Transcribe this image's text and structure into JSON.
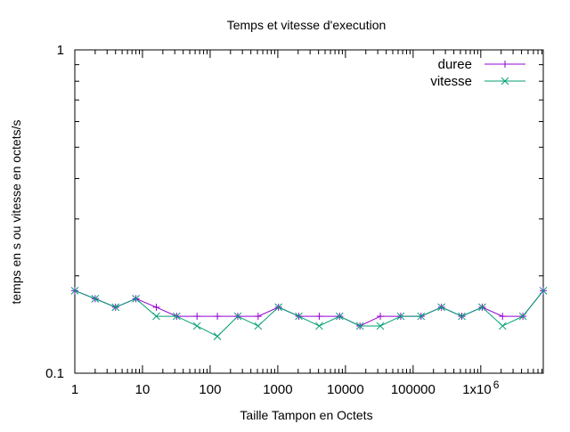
{
  "chart_data": {
    "type": "line",
    "title": "Temps et vitesse d'execution",
    "xlabel": "Taille Tampon en Octets",
    "ylabel": "temps en s ou vitesse en octets/s",
    "x_scale": "log2",
    "y_scale": "log10",
    "xlim": [
      1,
      8388608
    ],
    "ylim": [
      0.1,
      1
    ],
    "x_ticks": [
      {
        "value": 1,
        "label": "1"
      },
      {
        "value": 10,
        "label": "10"
      },
      {
        "value": 100,
        "label": "100"
      },
      {
        "value": 1000,
        "label": "1000"
      },
      {
        "value": 10000,
        "label": "10000"
      },
      {
        "value": 100000,
        "label": "100000"
      },
      {
        "value": 1000000,
        "label": "1x10",
        "exponent": "6"
      }
    ],
    "y_ticks": [
      {
        "value": 0.1,
        "label": "0.1"
      },
      {
        "value": 1,
        "label": "1"
      }
    ],
    "x": [
      1,
      2,
      4,
      8,
      16,
      32,
      64,
      128,
      256,
      512,
      1024,
      2048,
      4096,
      8192,
      16384,
      32768,
      65536,
      131072,
      262144,
      524288,
      1048576,
      2097152,
      4194304,
      8388608
    ],
    "series": [
      {
        "name": "duree",
        "color": "#9400d3",
        "marker": "plus",
        "values": [
          0.18,
          0.17,
          0.16,
          0.17,
          0.16,
          0.15,
          0.15,
          0.15,
          0.15,
          0.15,
          0.16,
          0.15,
          0.15,
          0.15,
          0.14,
          0.15,
          0.15,
          0.15,
          0.16,
          0.15,
          0.16,
          0.15,
          0.15,
          0.18
        ]
      },
      {
        "name": "vitesse",
        "color": "#009e73",
        "marker": "cross",
        "values": [
          0.18,
          0.17,
          0.16,
          0.17,
          0.15,
          0.15,
          0.14,
          0.13,
          0.15,
          0.14,
          0.16,
          0.15,
          0.14,
          0.15,
          0.14,
          0.14,
          0.15,
          0.15,
          0.16,
          0.15,
          0.16,
          0.14,
          0.15,
          0.18
        ]
      }
    ],
    "legend_position": "top-right",
    "grid": false
  }
}
